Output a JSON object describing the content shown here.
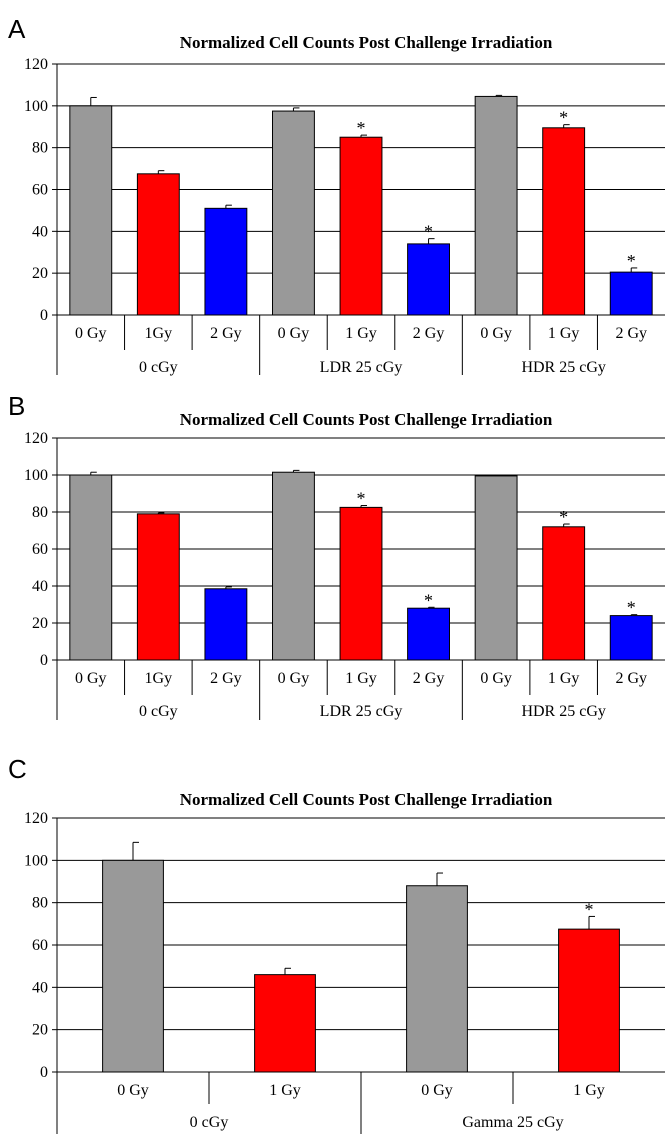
{
  "colors": {
    "gray": "#999999",
    "red": "#ff0000",
    "blue": "#0000ff"
  },
  "chart_data": [
    {
      "type": "bar",
      "panel": "A",
      "title": "Normalized Cell Counts Post Challenge Irradiation",
      "ylim": [
        0,
        120
      ],
      "yticks": [
        0,
        20,
        40,
        60,
        80,
        100,
        120
      ],
      "grid": true,
      "categories": [
        "0 Gy",
        "1Gy",
        "2 Gy",
        "0 Gy",
        "1 Gy",
        "2 Gy",
        "0 Gy",
        "1 Gy",
        "2 Gy"
      ],
      "groups": [
        {
          "label": "0 cGy",
          "span": 3
        },
        {
          "label": "LDR 25 cGy",
          "span": 3
        },
        {
          "label": "HDR 25 cGy",
          "span": 3
        }
      ],
      "values": [
        100,
        67.5,
        51,
        97.5,
        85,
        34,
        104.5,
        89.5,
        20.5
      ],
      "errors": [
        4,
        1.5,
        1.5,
        1.5,
        1,
        2.5,
        0.5,
        1.5,
        2
      ],
      "bar_colors": [
        "gray",
        "red",
        "blue",
        "gray",
        "red",
        "blue",
        "gray",
        "red",
        "blue"
      ],
      "significance": [
        "",
        "",
        "",
        "",
        "*",
        "*",
        "",
        "*",
        "*"
      ]
    },
    {
      "type": "bar",
      "panel": "B",
      "title": "Normalized Cell Counts Post Challenge Irradiation",
      "ylim": [
        0,
        120
      ],
      "yticks": [
        0,
        20,
        40,
        60,
        80,
        100,
        120
      ],
      "grid": true,
      "categories": [
        "0 Gy",
        "1Gy",
        "2 Gy",
        "0 Gy",
        "1 Gy",
        "2 Gy",
        "0 Gy",
        "1 Gy",
        "2 Gy"
      ],
      "groups": [
        {
          "label": "0 cGy",
          "span": 3
        },
        {
          "label": "LDR 25 cGy",
          "span": 3
        },
        {
          "label": "HDR 25 cGy",
          "span": 3
        }
      ],
      "values": [
        100,
        79,
        38.5,
        101.5,
        82.5,
        28,
        99.5,
        72,
        24
      ],
      "errors": [
        1.5,
        0.5,
        1,
        1,
        1,
        0.5,
        0.5,
        1.5,
        0.5
      ],
      "bar_colors": [
        "gray",
        "red",
        "blue",
        "gray",
        "red",
        "blue",
        "gray",
        "red",
        "blue"
      ],
      "significance": [
        "",
        "",
        "",
        "",
        "*",
        "*",
        "",
        "*",
        "*"
      ]
    },
    {
      "type": "bar",
      "panel": "C",
      "title": "Normalized Cell Counts Post Challenge Irradiation",
      "ylim": [
        0,
        120
      ],
      "yticks": [
        0,
        20,
        40,
        60,
        80,
        100,
        120
      ],
      "grid": true,
      "categories": [
        "0 Gy",
        "1 Gy",
        "0 Gy",
        "1 Gy"
      ],
      "groups": [
        {
          "label": "0 cGy",
          "span": 2
        },
        {
          "label": "Gamma 25 cGy",
          "span": 2
        }
      ],
      "values": [
        100,
        46,
        88,
        67.5
      ],
      "errors": [
        8.5,
        3,
        6,
        6
      ],
      "bar_colors": [
        "gray",
        "red",
        "gray",
        "red"
      ],
      "significance": [
        "",
        "",
        "",
        "*"
      ]
    }
  ]
}
